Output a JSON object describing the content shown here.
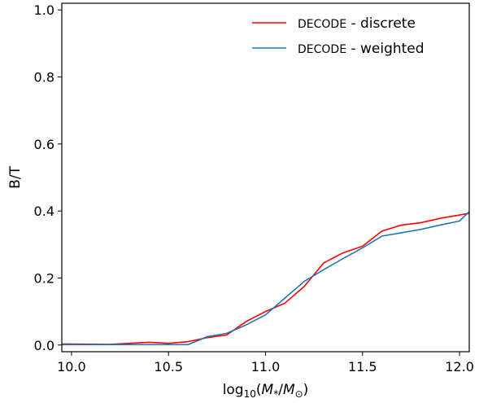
{
  "chart_data": {
    "type": "line",
    "title": "",
    "xlabel": {
      "prefix": "log",
      "sub": "10",
      "open": "(",
      "M1": "M",
      "sub1": "*",
      "slash": "/",
      "M2": "M",
      "sub2": "⊙",
      "close": ")"
    },
    "ylabel": "B/T",
    "xlim": [
      9.95,
      12.05
    ],
    "ylim": [
      -0.02,
      1.02
    ],
    "x_ticks": [
      10.0,
      10.5,
      11.0,
      11.5,
      12.0
    ],
    "x_tick_labels": [
      "10.0",
      "10.5",
      "11.0",
      "11.5",
      "12.0"
    ],
    "y_ticks": [
      0.0,
      0.2,
      0.4,
      0.6,
      0.8,
      1.0
    ],
    "y_tick_labels": [
      "0.0",
      "0.2",
      "0.4",
      "0.6",
      "0.8",
      "1.0"
    ],
    "grid": false,
    "legend_position": "top-right",
    "series": [
      {
        "name_code": "DECODE",
        "name_suffix": " - discrete",
        "color": "#ff0000",
        "x": [
          9.95,
          10.0,
          10.2,
          10.4,
          10.5,
          10.6,
          10.7,
          10.8,
          10.9,
          11.0,
          11.1,
          11.2,
          11.3,
          11.4,
          11.5,
          11.6,
          11.7,
          11.8,
          11.9,
          12.0,
          12.05
        ],
        "y": [
          0.003,
          0.003,
          0.002,
          0.008,
          0.005,
          0.01,
          0.022,
          0.03,
          0.07,
          0.1,
          0.125,
          0.175,
          0.245,
          0.275,
          0.295,
          0.34,
          0.358,
          0.365,
          0.378,
          0.388,
          0.393
        ]
      },
      {
        "name_code": "DECODE",
        "name_suffix": " - weighted",
        "color": "#1f77b4",
        "x": [
          9.95,
          10.0,
          10.2,
          10.4,
          10.5,
          10.6,
          10.7,
          10.8,
          10.9,
          11.0,
          11.1,
          11.2,
          11.3,
          11.4,
          11.5,
          11.6,
          11.7,
          11.8,
          11.9,
          12.0,
          12.05
        ],
        "y": [
          0.001,
          0.001,
          0.001,
          0.001,
          0.001,
          0.001,
          0.025,
          0.035,
          0.06,
          0.09,
          0.14,
          0.19,
          0.225,
          0.258,
          0.29,
          0.325,
          0.335,
          0.345,
          0.358,
          0.37,
          0.398
        ]
      }
    ]
  }
}
